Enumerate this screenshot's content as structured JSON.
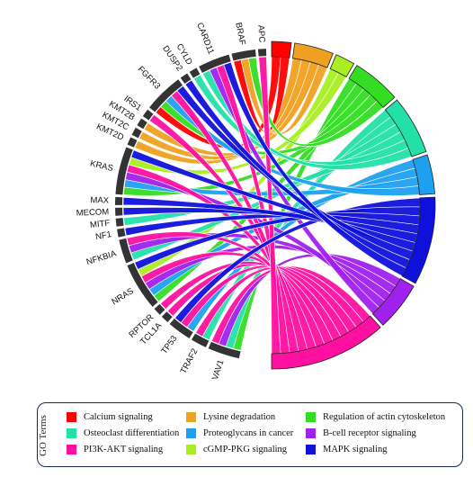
{
  "genes": [
    "APC",
    "BRAF",
    "CARD11",
    "CYLD",
    "DUSP2",
    "FGFR3",
    "IRS1",
    "KMT2B",
    "KMT2C",
    "KMT2D",
    "KRAS",
    "MAX",
    "MECOM",
    "MITF",
    "NF1",
    "NFKBIA",
    "NRAS",
    "RPTOR",
    "TCL1A",
    "TP53",
    "TRAF2",
    "VAV1"
  ],
  "terms": [
    {
      "name": "Calcium signaling",
      "color": "#ff0000"
    },
    {
      "name": "Lysine degradation",
      "color": "#f0a020"
    },
    {
      "name": "Regulation of actin cytoskeleton",
      "color": "#33dd22"
    },
    {
      "name": "Osteoclast differentiation",
      "color": "#22e0a8"
    },
    {
      "name": "Proteoglycans in cancer",
      "color": "#1ea0f0"
    },
    {
      "name": "B-cell receptor signaling",
      "color": "#a020ee"
    },
    {
      "name": "PI3K-AKT signaling",
      "color": "#ff10a0"
    },
    {
      "name": "cGMP-PKG signaling",
      "color": "#aaee22"
    },
    {
      "name": "MAPK signaling",
      "color": "#1010dd"
    }
  ],
  "links": [
    [
      "APC",
      6
    ],
    [
      "BRAF",
      0,
      1,
      2
    ],
    [
      "CARD11",
      3,
      5,
      6,
      8
    ],
    [
      "CYLD",
      3
    ],
    [
      "DUSP2",
      8
    ],
    [
      "FGFR3",
      0,
      2,
      4,
      6,
      8
    ],
    [
      "IRS1",
      6
    ],
    [
      "KMT2B",
      1
    ],
    [
      "KMT2C",
      1
    ],
    [
      "KMT2D",
      1
    ],
    [
      "KRAS",
      2,
      4,
      5,
      6,
      7,
      8
    ],
    [
      "MAX",
      8
    ],
    [
      "MECOM",
      8
    ],
    [
      "MITF",
      3
    ],
    [
      "NF1",
      8
    ],
    [
      "NFKBIA",
      3,
      5,
      6
    ],
    [
      "NRAS",
      2,
      4,
      5,
      6,
      7,
      8
    ],
    [
      "RPTOR",
      6
    ],
    [
      "TCL1A",
      6
    ],
    [
      "TP53",
      4,
      6,
      8
    ],
    [
      "TRAF2",
      3,
      6
    ],
    [
      "VAV1",
      2,
      3,
      5,
      6
    ]
  ],
  "legend_title": "GO Terms"
}
